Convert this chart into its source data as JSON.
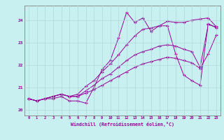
{
  "xlabel": "Windchill (Refroidissement éolien,°C)",
  "bg_color": "#c8f0f0",
  "grid_color": "#b0d8d8",
  "line_color": "#990099",
  "spine_color": "#808080",
  "xlim": [
    -0.5,
    23.5
  ],
  "ylim": [
    19.75,
    24.65
  ],
  "yticks": [
    20,
    21,
    22,
    23,
    24
  ],
  "xticks": [
    0,
    1,
    2,
    3,
    4,
    5,
    6,
    7,
    8,
    9,
    10,
    11,
    12,
    13,
    14,
    15,
    16,
    17,
    18,
    19,
    20,
    21,
    22,
    23
  ],
  "line1": [
    20.5,
    20.4,
    20.5,
    20.5,
    20.6,
    20.4,
    20.4,
    20.3,
    21.0,
    21.8,
    22.2,
    23.2,
    24.35,
    23.9,
    24.1,
    23.5,
    23.75,
    23.75,
    22.5,
    21.55,
    21.3,
    21.1,
    23.85,
    23.65
  ],
  "line2": [
    20.5,
    20.4,
    20.5,
    20.6,
    20.7,
    20.6,
    20.7,
    21.05,
    21.3,
    21.7,
    22.05,
    22.45,
    22.9,
    23.3,
    23.6,
    23.65,
    23.75,
    23.95,
    23.9,
    23.9,
    24.0,
    24.05,
    24.1,
    23.7
  ],
  "line3": [
    20.5,
    20.4,
    20.5,
    20.6,
    20.7,
    20.6,
    20.6,
    20.85,
    21.1,
    21.4,
    21.6,
    21.9,
    22.2,
    22.45,
    22.6,
    22.7,
    22.85,
    22.9,
    22.85,
    22.7,
    22.6,
    21.9,
    23.8,
    23.7
  ],
  "line4": [
    20.5,
    20.4,
    20.5,
    20.6,
    20.7,
    20.6,
    20.6,
    20.75,
    20.9,
    21.1,
    21.3,
    21.5,
    21.7,
    21.9,
    22.05,
    22.15,
    22.25,
    22.35,
    22.3,
    22.2,
    22.1,
    21.85,
    22.5,
    23.35
  ]
}
